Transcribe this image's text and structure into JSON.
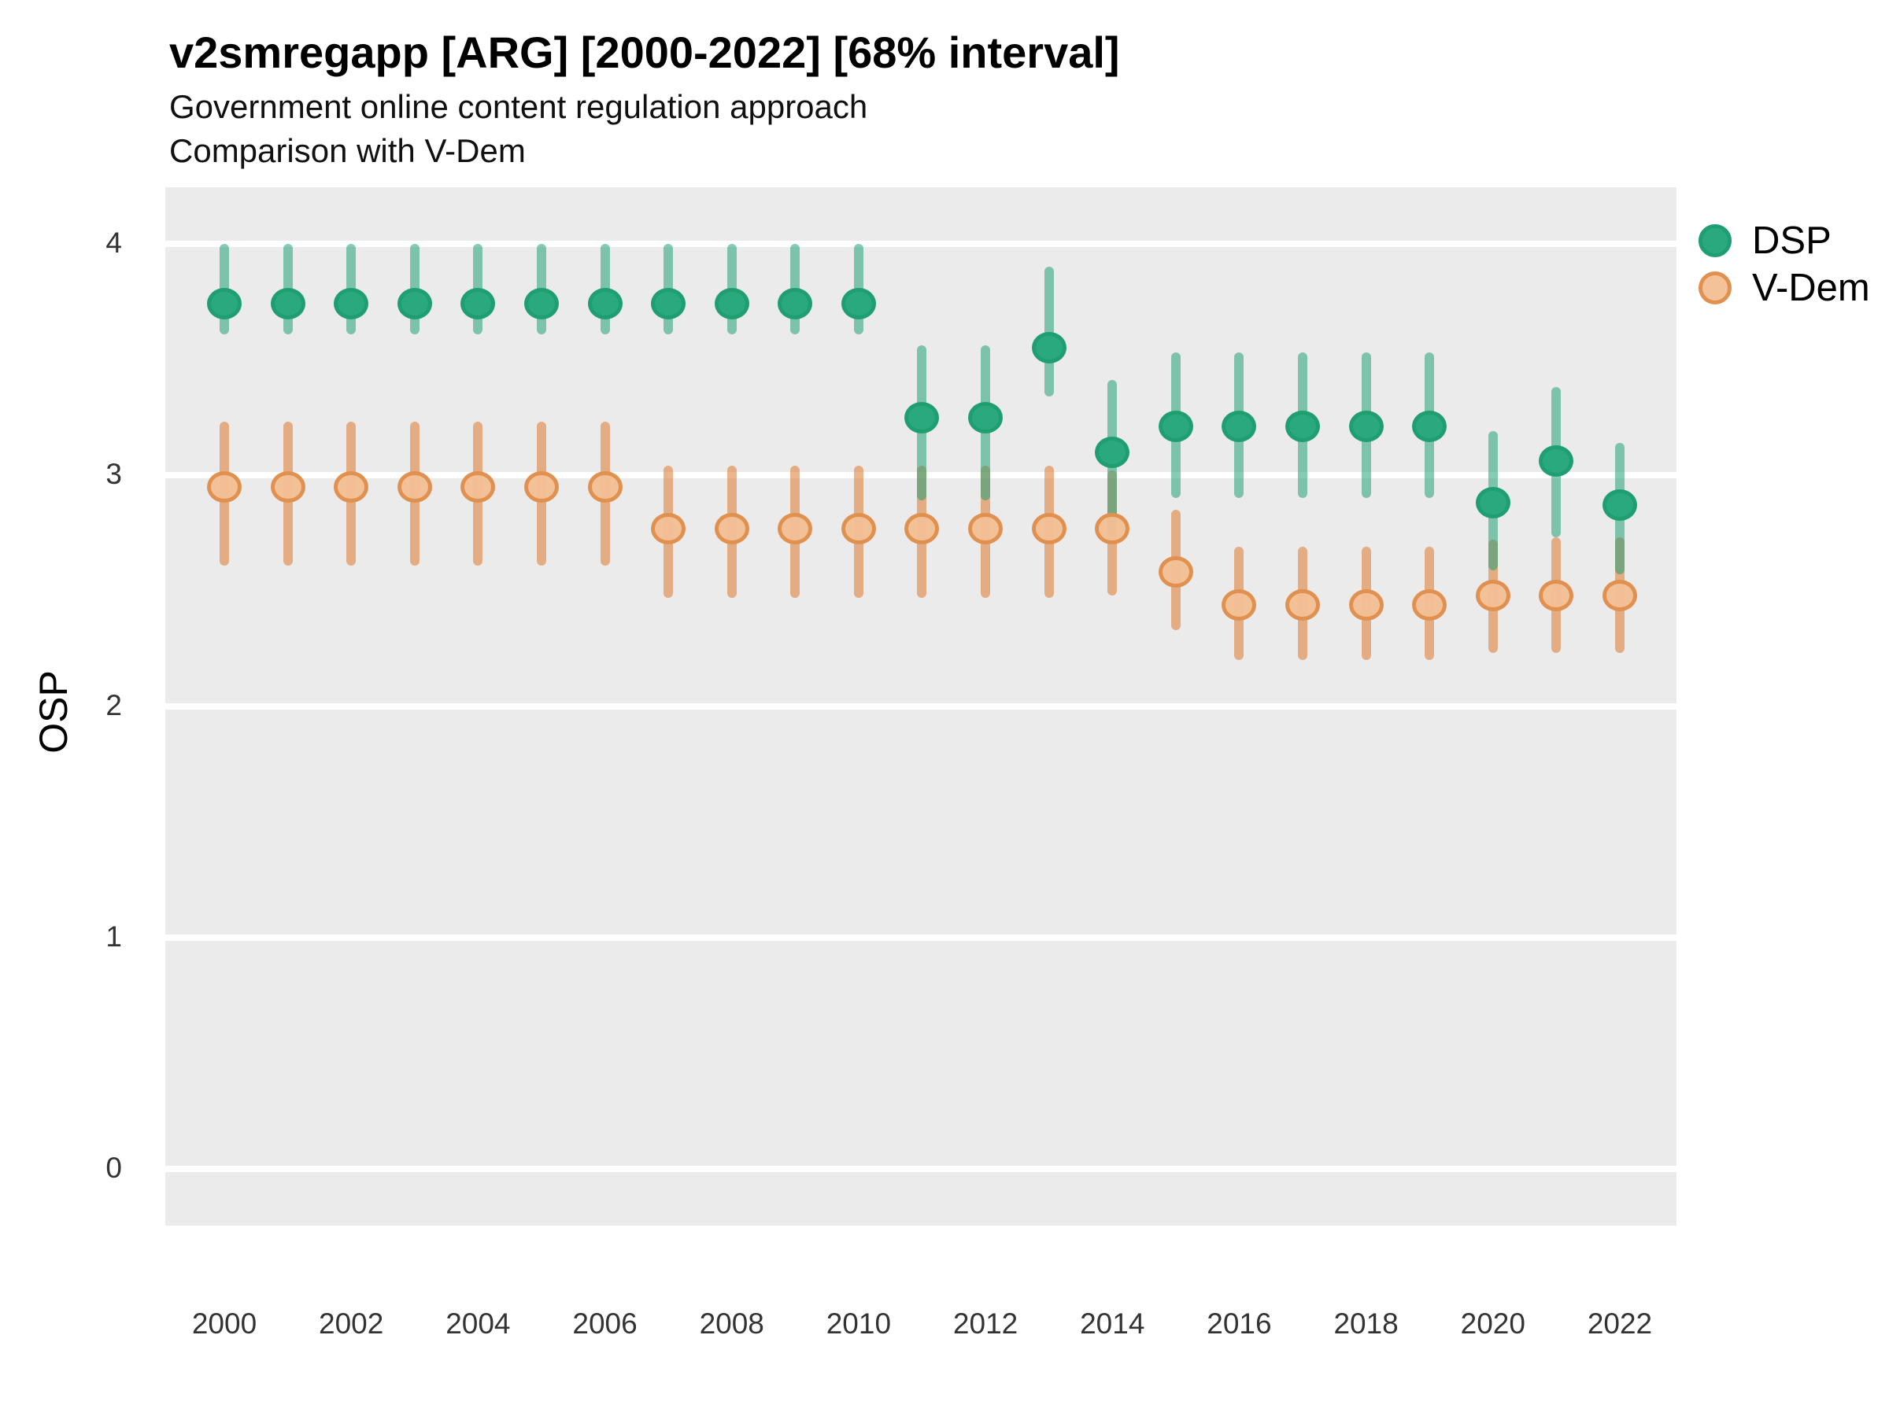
{
  "header": {
    "title": "v2smregapp [ARG] [2000-2022] [68% interval]",
    "subtitle": "Government online content regulation approach",
    "subtitle2": "Comparison with V-Dem"
  },
  "legend": {
    "items": [
      {
        "label": "DSP"
      },
      {
        "label": "V-Dem"
      }
    ]
  },
  "colors": {
    "panel_bg": "#ebebeb",
    "gridline": "#ffffff",
    "dsp_point_fill": "#2ba97e",
    "dsp_point_border": "#1f9e72",
    "dsp_range": "rgba(35,160,118,0.55)",
    "vdem_point_fill": "rgba(243,191,148,0.95)",
    "vdem_point_border": "rgba(224,143,76,0.95)",
    "vdem_range": "rgba(222,120,45,0.55)"
  },
  "chart_data": {
    "type": "pointrange",
    "title": "v2smregapp [ARG] [2000-2022] [68% interval]",
    "subtitle": "Government online content regulation approach",
    "subtitle2": "Comparison with V-Dem",
    "xlabel": "",
    "ylabel": "OSP",
    "ylim": [
      0,
      4
    ],
    "yticks": [
      0,
      1,
      2,
      3,
      4
    ],
    "xticks": [
      2000,
      2002,
      2004,
      2006,
      2008,
      2010,
      2012,
      2014,
      2016,
      2018,
      2020,
      2022
    ],
    "interval": "68%",
    "legend_position": "right",
    "grid": "major-horizontal-white-on-gray",
    "series": [
      {
        "name": "DSP",
        "points": [
          {
            "year": 2000,
            "est": 3.74,
            "lo": 3.61,
            "hi": 4.0
          },
          {
            "year": 2001,
            "est": 3.74,
            "lo": 3.61,
            "hi": 4.0
          },
          {
            "year": 2002,
            "est": 3.74,
            "lo": 3.61,
            "hi": 4.0
          },
          {
            "year": 2003,
            "est": 3.74,
            "lo": 3.61,
            "hi": 4.0
          },
          {
            "year": 2004,
            "est": 3.74,
            "lo": 3.61,
            "hi": 4.0
          },
          {
            "year": 2005,
            "est": 3.74,
            "lo": 3.61,
            "hi": 4.0
          },
          {
            "year": 2006,
            "est": 3.74,
            "lo": 3.61,
            "hi": 4.0
          },
          {
            "year": 2007,
            "est": 3.74,
            "lo": 3.61,
            "hi": 4.0
          },
          {
            "year": 2008,
            "est": 3.74,
            "lo": 3.61,
            "hi": 4.0
          },
          {
            "year": 2009,
            "est": 3.74,
            "lo": 3.61,
            "hi": 4.0
          },
          {
            "year": 2010,
            "est": 3.74,
            "lo": 3.61,
            "hi": 4.0
          },
          {
            "year": 2011,
            "est": 3.25,
            "lo": 2.89,
            "hi": 3.56
          },
          {
            "year": 2012,
            "est": 3.25,
            "lo": 2.89,
            "hi": 3.56
          },
          {
            "year": 2013,
            "est": 3.55,
            "lo": 3.34,
            "hi": 3.9
          },
          {
            "year": 2014,
            "est": 3.1,
            "lo": 2.74,
            "hi": 3.41
          },
          {
            "year": 2015,
            "est": 3.21,
            "lo": 2.9,
            "hi": 3.53
          },
          {
            "year": 2016,
            "est": 3.21,
            "lo": 2.9,
            "hi": 3.53
          },
          {
            "year": 2017,
            "est": 3.21,
            "lo": 2.9,
            "hi": 3.53
          },
          {
            "year": 2018,
            "est": 3.21,
            "lo": 2.9,
            "hi": 3.53
          },
          {
            "year": 2019,
            "est": 3.21,
            "lo": 2.9,
            "hi": 3.53
          },
          {
            "year": 2020,
            "est": 2.88,
            "lo": 2.59,
            "hi": 3.19
          },
          {
            "year": 2021,
            "est": 3.06,
            "lo": 2.73,
            "hi": 3.38
          },
          {
            "year": 2022,
            "est": 2.87,
            "lo": 2.57,
            "hi": 3.14
          }
        ]
      },
      {
        "name": "V-Dem",
        "points": [
          {
            "year": 2000,
            "est": 2.95,
            "lo": 2.61,
            "hi": 3.23
          },
          {
            "year": 2001,
            "est": 2.95,
            "lo": 2.61,
            "hi": 3.23
          },
          {
            "year": 2002,
            "est": 2.95,
            "lo": 2.61,
            "hi": 3.23
          },
          {
            "year": 2003,
            "est": 2.95,
            "lo": 2.61,
            "hi": 3.23
          },
          {
            "year": 2004,
            "est": 2.95,
            "lo": 2.61,
            "hi": 3.23
          },
          {
            "year": 2005,
            "est": 2.95,
            "lo": 2.61,
            "hi": 3.23
          },
          {
            "year": 2006,
            "est": 2.95,
            "lo": 2.61,
            "hi": 3.23
          },
          {
            "year": 2007,
            "est": 2.77,
            "lo": 2.47,
            "hi": 3.04
          },
          {
            "year": 2008,
            "est": 2.77,
            "lo": 2.47,
            "hi": 3.04
          },
          {
            "year": 2009,
            "est": 2.77,
            "lo": 2.47,
            "hi": 3.04
          },
          {
            "year": 2010,
            "est": 2.77,
            "lo": 2.47,
            "hi": 3.04
          },
          {
            "year": 2011,
            "est": 2.77,
            "lo": 2.47,
            "hi": 3.04
          },
          {
            "year": 2012,
            "est": 2.77,
            "lo": 2.47,
            "hi": 3.04
          },
          {
            "year": 2013,
            "est": 2.77,
            "lo": 2.47,
            "hi": 3.04
          },
          {
            "year": 2014,
            "est": 2.77,
            "lo": 2.48,
            "hi": 3.02
          },
          {
            "year": 2015,
            "est": 2.58,
            "lo": 2.33,
            "hi": 2.85
          },
          {
            "year": 2016,
            "est": 2.44,
            "lo": 2.2,
            "hi": 2.69
          },
          {
            "year": 2017,
            "est": 2.44,
            "lo": 2.2,
            "hi": 2.69
          },
          {
            "year": 2018,
            "est": 2.44,
            "lo": 2.2,
            "hi": 2.69
          },
          {
            "year": 2019,
            "est": 2.44,
            "lo": 2.2,
            "hi": 2.69
          },
          {
            "year": 2020,
            "est": 2.48,
            "lo": 2.23,
            "hi": 2.72
          },
          {
            "year": 2021,
            "est": 2.48,
            "lo": 2.23,
            "hi": 2.73
          },
          {
            "year": 2022,
            "est": 2.48,
            "lo": 2.23,
            "hi": 2.73
          }
        ]
      }
    ]
  }
}
